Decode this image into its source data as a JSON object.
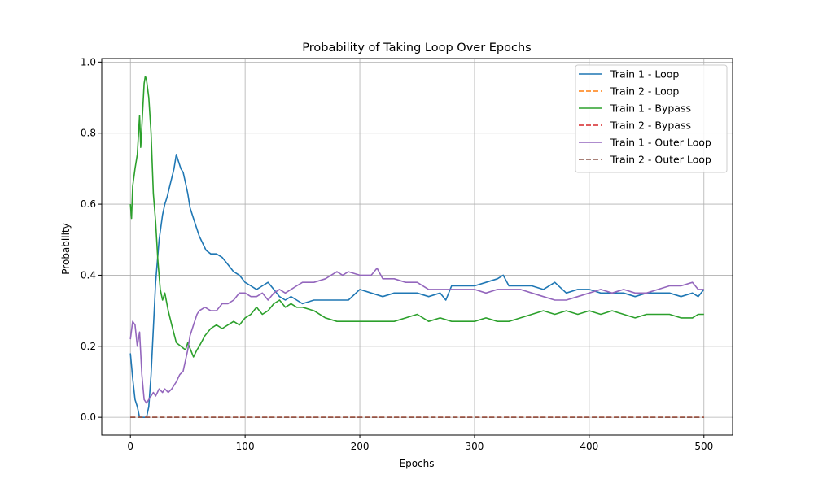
{
  "chart_data": {
    "type": "line",
    "title": "Probability of Taking Loop Over Epochs",
    "xlabel": "Epochs",
    "ylabel": "Probability",
    "xlim": [
      -25,
      525
    ],
    "ylim": [
      -0.05,
      1.01
    ],
    "xticks": [
      0,
      100,
      200,
      300,
      400,
      500
    ],
    "xtick_labels": [
      "0",
      "100",
      "200",
      "300",
      "400",
      "500"
    ],
    "yticks": [
      0.0,
      0.2,
      0.4,
      0.6,
      0.8,
      1.0
    ],
    "ytick_labels": [
      "0.0",
      "0.2",
      "0.4",
      "0.6",
      "0.8",
      "1.0"
    ],
    "grid": true,
    "legend_position": "top-right",
    "series": [
      {
        "name": "Train 1 - Loop",
        "color": "#1f77b4",
        "style": "solid",
        "x": [
          0,
          2,
          4,
          6,
          8,
          10,
          12,
          14,
          16,
          18,
          20,
          22,
          25,
          28,
          30,
          32,
          35,
          38,
          40,
          42,
          44,
          46,
          48,
          50,
          52,
          55,
          58,
          60,
          63,
          66,
          70,
          75,
          80,
          85,
          90,
          95,
          100,
          105,
          110,
          115,
          120,
          125,
          130,
          135,
          140,
          145,
          150,
          160,
          170,
          180,
          190,
          200,
          210,
          220,
          230,
          240,
          250,
          260,
          270,
          275,
          280,
          290,
          300,
          310,
          320,
          325,
          330,
          340,
          350,
          360,
          370,
          380,
          390,
          400,
          410,
          420,
          430,
          440,
          450,
          460,
          470,
          480,
          490,
          495,
          500
        ],
        "values": [
          0.18,
          0.11,
          0.05,
          0.03,
          0.0,
          0.0,
          0.0,
          0.0,
          0.03,
          0.12,
          0.25,
          0.38,
          0.5,
          0.57,
          0.6,
          0.62,
          0.66,
          0.7,
          0.74,
          0.72,
          0.7,
          0.69,
          0.66,
          0.63,
          0.59,
          0.56,
          0.53,
          0.51,
          0.49,
          0.47,
          0.46,
          0.46,
          0.45,
          0.43,
          0.41,
          0.4,
          0.38,
          0.37,
          0.36,
          0.37,
          0.38,
          0.36,
          0.34,
          0.33,
          0.34,
          0.33,
          0.32,
          0.33,
          0.33,
          0.33,
          0.33,
          0.36,
          0.35,
          0.34,
          0.35,
          0.35,
          0.35,
          0.34,
          0.35,
          0.33,
          0.37,
          0.37,
          0.37,
          0.38,
          0.39,
          0.4,
          0.37,
          0.37,
          0.37,
          0.36,
          0.38,
          0.35,
          0.36,
          0.36,
          0.35,
          0.35,
          0.35,
          0.34,
          0.35,
          0.35,
          0.35,
          0.34,
          0.35,
          0.34,
          0.36
        ]
      },
      {
        "name": "Train 2 - Loop",
        "color": "#ff7f0e",
        "style": "dashed",
        "x": [
          0,
          500
        ],
        "values": [
          0.0,
          0.0
        ]
      },
      {
        "name": "Train 1 - Bypass",
        "color": "#2ca02c",
        "style": "solid",
        "x": [
          0,
          1,
          2,
          4,
          6,
          8,
          9,
          10,
          12,
          13,
          14,
          16,
          18,
          20,
          22,
          24,
          26,
          28,
          30,
          33,
          36,
          40,
          44,
          48,
          50,
          55,
          58,
          60,
          65,
          70,
          75,
          80,
          85,
          90,
          95,
          100,
          105,
          110,
          115,
          120,
          125,
          130,
          135,
          140,
          145,
          150,
          160,
          170,
          180,
          190,
          200,
          210,
          220,
          230,
          240,
          250,
          260,
          270,
          280,
          290,
          300,
          310,
          320,
          330,
          340,
          350,
          360,
          370,
          380,
          390,
          400,
          410,
          420,
          430,
          440,
          450,
          460,
          470,
          480,
          490,
          495,
          500
        ],
        "values": [
          0.6,
          0.56,
          0.65,
          0.7,
          0.74,
          0.85,
          0.76,
          0.82,
          0.94,
          0.96,
          0.95,
          0.9,
          0.8,
          0.63,
          0.55,
          0.44,
          0.36,
          0.33,
          0.35,
          0.3,
          0.26,
          0.21,
          0.2,
          0.19,
          0.21,
          0.17,
          0.19,
          0.2,
          0.23,
          0.25,
          0.26,
          0.25,
          0.26,
          0.27,
          0.26,
          0.28,
          0.29,
          0.31,
          0.29,
          0.3,
          0.32,
          0.33,
          0.31,
          0.32,
          0.31,
          0.31,
          0.3,
          0.28,
          0.27,
          0.27,
          0.27,
          0.27,
          0.27,
          0.27,
          0.28,
          0.29,
          0.27,
          0.28,
          0.27,
          0.27,
          0.27,
          0.28,
          0.27,
          0.27,
          0.28,
          0.29,
          0.3,
          0.29,
          0.3,
          0.29,
          0.3,
          0.29,
          0.3,
          0.29,
          0.28,
          0.29,
          0.29,
          0.29,
          0.28,
          0.28,
          0.29,
          0.29
        ]
      },
      {
        "name": "Train 2 - Bypass",
        "color": "#d62728",
        "style": "dashed",
        "x": [
          0,
          500
        ],
        "values": [
          0.0,
          0.0
        ]
      },
      {
        "name": "Train 1 - Outer Loop",
        "color": "#9467bd",
        "style": "solid",
        "x": [
          0,
          2,
          4,
          6,
          8,
          10,
          12,
          14,
          16,
          18,
          20,
          22,
          25,
          28,
          30,
          33,
          36,
          40,
          43,
          46,
          50,
          52,
          55,
          58,
          60,
          65,
          70,
          75,
          80,
          85,
          90,
          95,
          100,
          105,
          110,
          115,
          120,
          125,
          130,
          135,
          140,
          145,
          150,
          160,
          170,
          175,
          180,
          185,
          190,
          200,
          210,
          215,
          220,
          230,
          240,
          250,
          260,
          270,
          280,
          290,
          300,
          310,
          320,
          330,
          340,
          350,
          360,
          370,
          380,
          390,
          400,
          410,
          420,
          430,
          440,
          450,
          460,
          470,
          480,
          490,
          495,
          500
        ],
        "values": [
          0.22,
          0.27,
          0.26,
          0.2,
          0.24,
          0.12,
          0.05,
          0.04,
          0.05,
          0.06,
          0.07,
          0.06,
          0.08,
          0.07,
          0.08,
          0.07,
          0.08,
          0.1,
          0.12,
          0.13,
          0.19,
          0.23,
          0.26,
          0.29,
          0.3,
          0.31,
          0.3,
          0.3,
          0.32,
          0.32,
          0.33,
          0.35,
          0.35,
          0.34,
          0.34,
          0.35,
          0.33,
          0.35,
          0.36,
          0.35,
          0.36,
          0.37,
          0.38,
          0.38,
          0.39,
          0.4,
          0.41,
          0.4,
          0.41,
          0.4,
          0.4,
          0.42,
          0.39,
          0.39,
          0.38,
          0.38,
          0.36,
          0.36,
          0.36,
          0.36,
          0.36,
          0.35,
          0.36,
          0.36,
          0.36,
          0.35,
          0.34,
          0.33,
          0.33,
          0.34,
          0.35,
          0.36,
          0.35,
          0.36,
          0.35,
          0.35,
          0.36,
          0.37,
          0.37,
          0.38,
          0.36,
          0.36
        ]
      },
      {
        "name": "Train 2 - Outer Loop",
        "color": "#8c564b",
        "style": "dashed",
        "x": [
          0,
          500
        ],
        "values": [
          0.0,
          0.0
        ]
      }
    ]
  }
}
